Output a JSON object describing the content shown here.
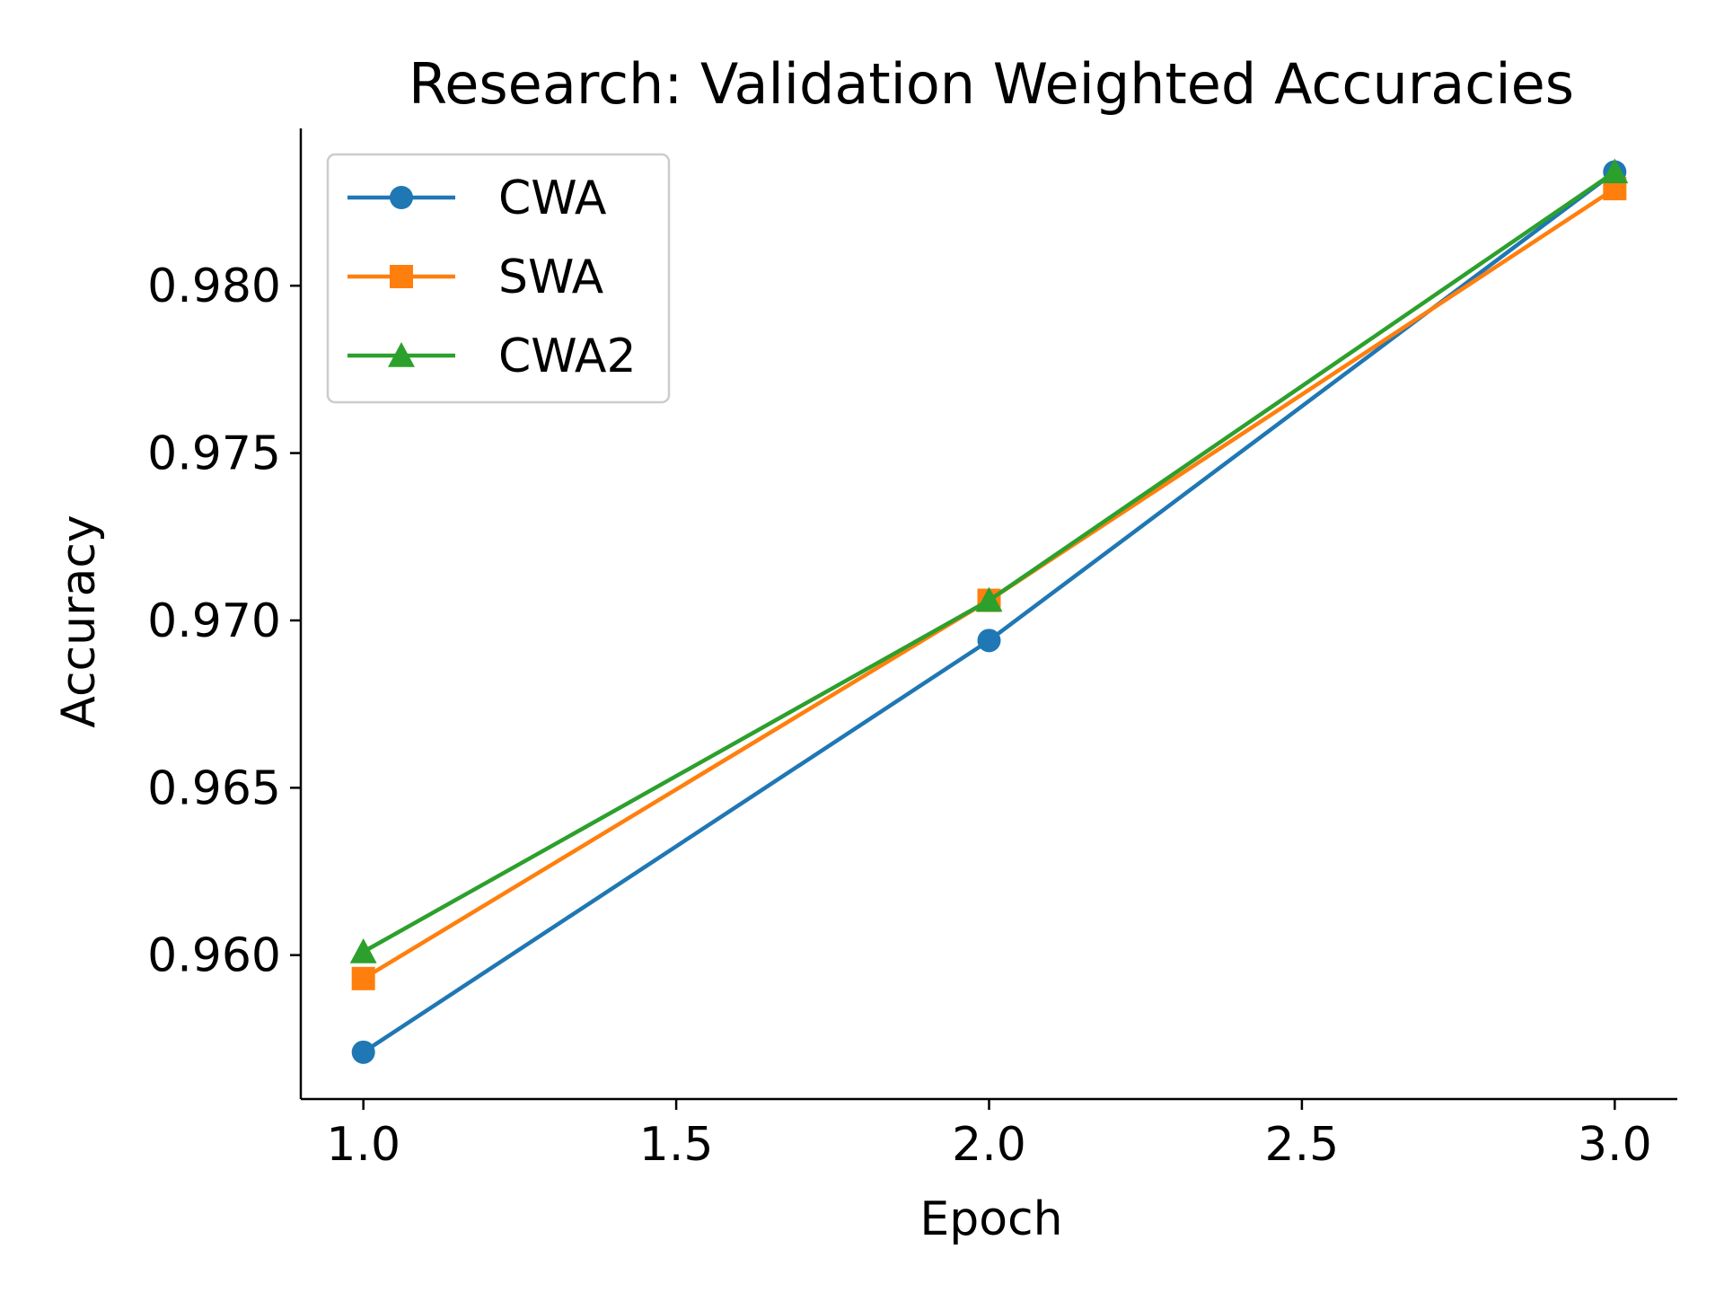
{
  "chart_data": {
    "type": "line",
    "title": "Research: Validation Weighted Accuracies",
    "xlabel": "Epoch",
    "ylabel": "Accuracy",
    "x": [
      1.0,
      2.0,
      3.0
    ],
    "xlim": [
      0.9,
      3.1
    ],
    "ylim": [
      0.9557,
      0.9847
    ],
    "xticks": [
      1.0,
      1.5,
      2.0,
      2.5,
      3.0
    ],
    "xtick_labels": [
      "1.0",
      "1.5",
      "2.0",
      "2.5",
      "3.0"
    ],
    "yticks": [
      0.96,
      0.965,
      0.97,
      0.975,
      0.98
    ],
    "ytick_labels": [
      "0.960",
      "0.965",
      "0.970",
      "0.975",
      "0.980"
    ],
    "grid": false,
    "legend_position": "top-left",
    "series": [
      {
        "name": "CWA",
        "values": [
          0.9571,
          0.9694,
          0.9834
        ],
        "color": "#1f77b4",
        "marker": "circle"
      },
      {
        "name": "SWA",
        "values": [
          0.9593,
          0.9706,
          0.9829
        ],
        "color": "#ff7f0e",
        "marker": "square"
      },
      {
        "name": "CWA2",
        "values": [
          0.9601,
          0.9706,
          0.9834
        ],
        "color": "#2ca02c",
        "marker": "triangle"
      }
    ]
  }
}
